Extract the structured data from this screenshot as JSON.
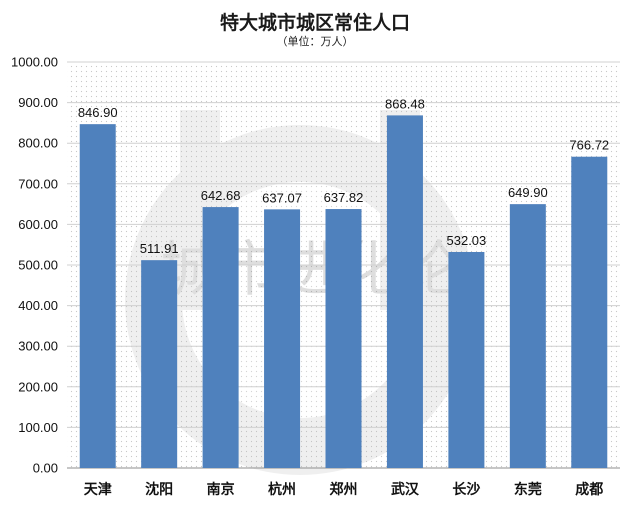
{
  "chart_data": {
    "type": "bar",
    "title": "特大城市城区常住人口",
    "subtitle": "（单位：万人）",
    "categories": [
      "天津",
      "沈阳",
      "南京",
      "杭州",
      "郑州",
      "武汉",
      "长沙",
      "东莞",
      "成都"
    ],
    "values": [
      846.9,
      511.91,
      642.68,
      637.07,
      637.82,
      868.48,
      532.03,
      649.9,
      766.72
    ],
    "value_labels": [
      "846.90",
      "511.91",
      "642.68",
      "637.07",
      "637.82",
      "868.48",
      "532.03",
      "649.90",
      "766.72"
    ],
    "ylim": [
      0,
      1000
    ],
    "yticks": [
      "0.00",
      "100.00",
      "200.00",
      "300.00",
      "400.00",
      "500.00",
      "600.00",
      "700.00",
      "800.00",
      "900.00",
      "1000.00"
    ],
    "xlabel": "",
    "ylabel": "",
    "grid": true,
    "bar_color": "#4f81bd",
    "watermark_text": "城市进化论"
  }
}
